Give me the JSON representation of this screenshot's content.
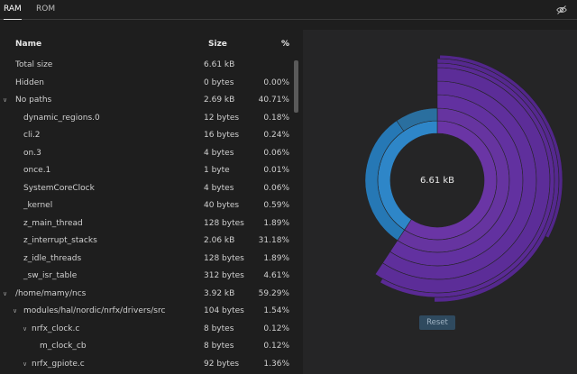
{
  "tabs": [
    {
      "label": "RAM",
      "active": true
    },
    {
      "label": "ROM",
      "active": false
    }
  ],
  "table": {
    "headers": {
      "name": "Name",
      "size": "Size",
      "percent": "%"
    },
    "rows": [
      {
        "name": "Total size",
        "size": "6.61 kB",
        "percent": "",
        "depth": 0,
        "expander": ""
      },
      {
        "name": "Hidden",
        "size": "0 bytes",
        "percent": "0.00%",
        "depth": 0,
        "expander": ""
      },
      {
        "name": "No paths",
        "size": "2.69 kB",
        "percent": "40.71%",
        "depth": 0,
        "expander": "open"
      },
      {
        "name": "dynamic_regions.0",
        "size": "12 bytes",
        "percent": "0.18%",
        "depth": 1,
        "expander": ""
      },
      {
        "name": "cli.2",
        "size": "16 bytes",
        "percent": "0.24%",
        "depth": 1,
        "expander": ""
      },
      {
        "name": "on.3",
        "size": "4 bytes",
        "percent": "0.06%",
        "depth": 1,
        "expander": ""
      },
      {
        "name": "once.1",
        "size": "1 byte",
        "percent": "0.01%",
        "depth": 1,
        "expander": ""
      },
      {
        "name": "SystemCoreClock",
        "size": "4 bytes",
        "percent": "0.06%",
        "depth": 1,
        "expander": ""
      },
      {
        "name": "_kernel",
        "size": "40 bytes",
        "percent": "0.59%",
        "depth": 1,
        "expander": ""
      },
      {
        "name": "z_main_thread",
        "size": "128 bytes",
        "percent": "1.89%",
        "depth": 1,
        "expander": ""
      },
      {
        "name": "z_interrupt_stacks",
        "size": "2.06 kB",
        "percent": "31.18%",
        "depth": 1,
        "expander": ""
      },
      {
        "name": "z_idle_threads",
        "size": "128 bytes",
        "percent": "1.89%",
        "depth": 1,
        "expander": ""
      },
      {
        "name": "_sw_isr_table",
        "size": "312 bytes",
        "percent": "4.61%",
        "depth": 1,
        "expander": ""
      },
      {
        "name": "/home/mamy/ncs",
        "size": "3.92 kB",
        "percent": "59.29%",
        "depth": 0,
        "expander": "open"
      },
      {
        "name": "modules/hal/nordic/nrfx/drivers/src",
        "size": "104 bytes",
        "percent": "1.54%",
        "depth": 1,
        "expander": "open"
      },
      {
        "name": "nrfx_clock.c",
        "size": "8 bytes",
        "percent": "0.12%",
        "depth": 2,
        "expander": "open"
      },
      {
        "name": "m_clock_cb",
        "size": "8 bytes",
        "percent": "0.12%",
        "depth": 3,
        "expander": ""
      },
      {
        "name": "nrfx_gpiote.c",
        "size": "92 bytes",
        "percent": "1.36%",
        "depth": 2,
        "expander": "open"
      }
    ]
  },
  "chart": {
    "center_label": "6.61 kB",
    "reset_label": "Reset",
    "colors": {
      "no_paths": "#2e86c8",
      "ncs": "#6a35a5"
    },
    "segments": [
      {
        "name": "/home/mamy/ncs",
        "percent": 59.29
      },
      {
        "name": "No paths",
        "percent": 40.71
      }
    ]
  },
  "icons": {
    "visibility": "eye-off-icon"
  }
}
